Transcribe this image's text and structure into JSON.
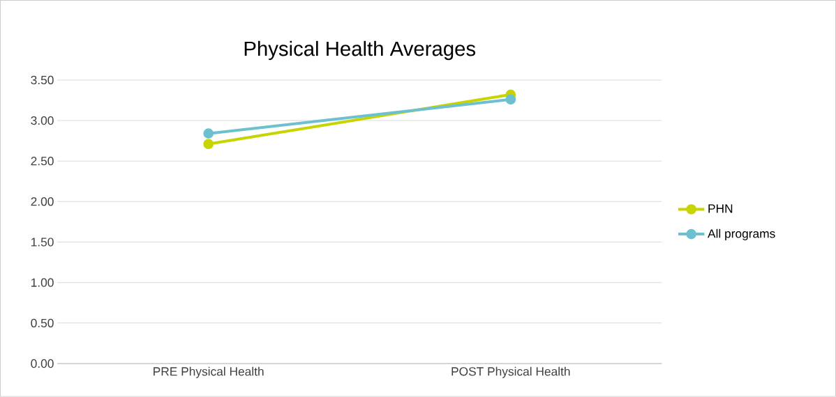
{
  "chart_data": {
    "type": "line",
    "title": "Physical Health Averages",
    "categories": [
      "PRE Physical Health",
      "POST Physical Health"
    ],
    "series": [
      {
        "name": "PHN",
        "color": "#c8d400",
        "values": [
          2.71,
          3.32
        ]
      },
      {
        "name": "All programs",
        "color": "#6cc0d0",
        "values": [
          2.84,
          3.26
        ]
      }
    ],
    "ylim": [
      0,
      3.5
    ],
    "yticks": [
      {
        "value": 0,
        "label": "0.00"
      },
      {
        "value": 0.5,
        "label": "0.50"
      },
      {
        "value": 1,
        "label": "1.00"
      },
      {
        "value": 1.5,
        "label": "1.50"
      },
      {
        "value": 2,
        "label": "2.00"
      },
      {
        "value": 2.5,
        "label": "2.50"
      },
      {
        "value": 3,
        "label": "3.00"
      },
      {
        "value": 3.5,
        "label": "3.50"
      }
    ],
    "grid": "y",
    "legend": "right",
    "marker": "circle",
    "line_style": "solid"
  }
}
